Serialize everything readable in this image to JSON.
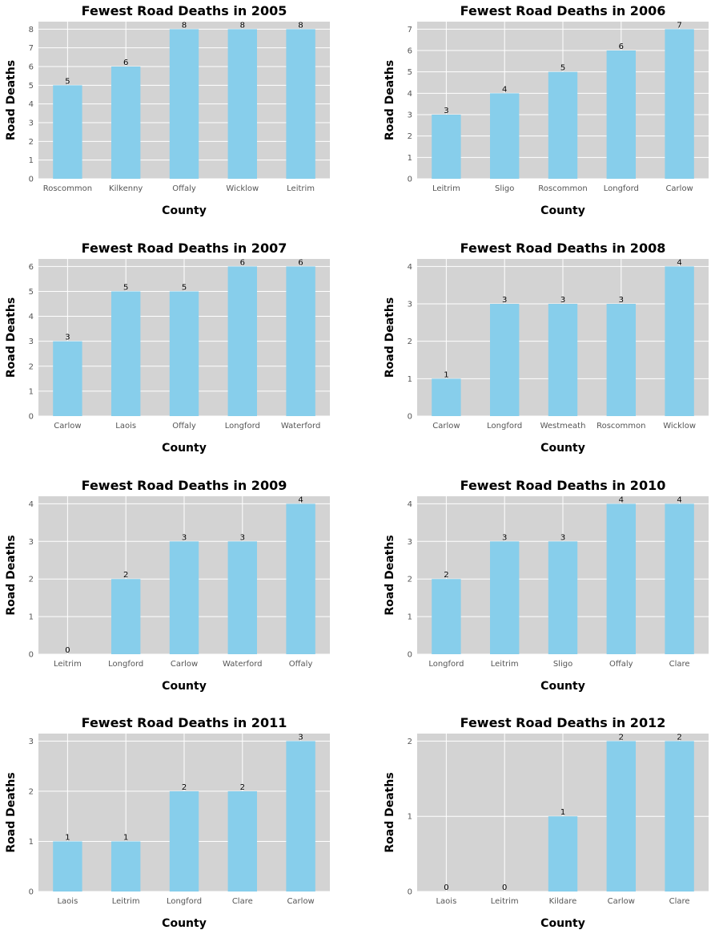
{
  "style": {
    "panel_bg": "#d3d3d3",
    "grid": "#ffffff",
    "bar": "#87ceeb",
    "text": "#000000",
    "tick_text": "#555555"
  },
  "chart_data": [
    {
      "type": "bar",
      "title": "Fewest Road Deaths in 2005",
      "xlabel": "County",
      "ylabel": "Road Deaths",
      "categories": [
        "Roscommon",
        "Kilkenny",
        "Offaly",
        "Wicklow",
        "Leitrim"
      ],
      "values": [
        5,
        6,
        8,
        8,
        8
      ],
      "ylim": [
        0,
        8.4
      ],
      "yticks": [
        0,
        1,
        2,
        3,
        4,
        5,
        6,
        7,
        8
      ],
      "grid": true
    },
    {
      "type": "bar",
      "title": "Fewest Road Deaths in 2006",
      "xlabel": "County",
      "ylabel": "Road Deaths",
      "categories": [
        "Leitrim",
        "Sligo",
        "Roscommon",
        "Longford",
        "Carlow"
      ],
      "values": [
        3,
        4,
        5,
        6,
        7
      ],
      "ylim": [
        0,
        7.35
      ],
      "yticks": [
        0,
        1,
        2,
        3,
        4,
        5,
        6,
        7
      ],
      "grid": true
    },
    {
      "type": "bar",
      "title": "Fewest Road Deaths in 2007",
      "xlabel": "County",
      "ylabel": "Road Deaths",
      "categories": [
        "Carlow",
        "Laois",
        "Offaly",
        "Longford",
        "Waterford"
      ],
      "values": [
        3,
        5,
        5,
        6,
        6
      ],
      "ylim": [
        0,
        6.3
      ],
      "yticks": [
        0,
        1,
        2,
        3,
        4,
        5,
        6
      ],
      "grid": true
    },
    {
      "type": "bar",
      "title": "Fewest Road Deaths in 2008",
      "xlabel": "County",
      "ylabel": "Road Deaths",
      "categories": [
        "Carlow",
        "Longford",
        "Westmeath",
        "Roscommon",
        "Wicklow"
      ],
      "values": [
        1,
        3,
        3,
        3,
        4
      ],
      "ylim": [
        0,
        4.2
      ],
      "yticks": [
        0,
        1,
        2,
        3,
        4
      ],
      "grid": true
    },
    {
      "type": "bar",
      "title": "Fewest Road Deaths in 2009",
      "xlabel": "County",
      "ylabel": "Road Deaths",
      "categories": [
        "Leitrim",
        "Longford",
        "Carlow",
        "Waterford",
        "Offaly"
      ],
      "values": [
        0,
        2,
        3,
        3,
        4
      ],
      "ylim": [
        0,
        4.2
      ],
      "yticks": [
        0,
        1,
        2,
        3,
        4
      ],
      "grid": true
    },
    {
      "type": "bar",
      "title": "Fewest Road Deaths in 2010",
      "xlabel": "County",
      "ylabel": "Road Deaths",
      "categories": [
        "Longford",
        "Leitrim",
        "Sligo",
        "Offaly",
        "Clare"
      ],
      "values": [
        2,
        3,
        3,
        4,
        4
      ],
      "ylim": [
        0,
        4.2
      ],
      "yticks": [
        0,
        1,
        2,
        3,
        4
      ],
      "grid": true
    },
    {
      "type": "bar",
      "title": "Fewest Road Deaths in 2011",
      "xlabel": "County",
      "ylabel": "Road Deaths",
      "categories": [
        "Laois",
        "Leitrim",
        "Longford",
        "Clare",
        "Carlow"
      ],
      "values": [
        1,
        1,
        2,
        2,
        3
      ],
      "ylim": [
        0,
        3.15
      ],
      "yticks": [
        0,
        1,
        2,
        3
      ],
      "grid": true
    },
    {
      "type": "bar",
      "title": "Fewest Road Deaths in 2012",
      "xlabel": "County",
      "ylabel": "Road Deaths",
      "categories": [
        "Laois",
        "Leitrim",
        "Kildare",
        "Carlow",
        "Clare"
      ],
      "values": [
        0,
        0,
        1,
        2,
        2
      ],
      "ylim": [
        0,
        2.1
      ],
      "yticks": [
        0,
        1,
        2
      ],
      "grid": true
    }
  ]
}
